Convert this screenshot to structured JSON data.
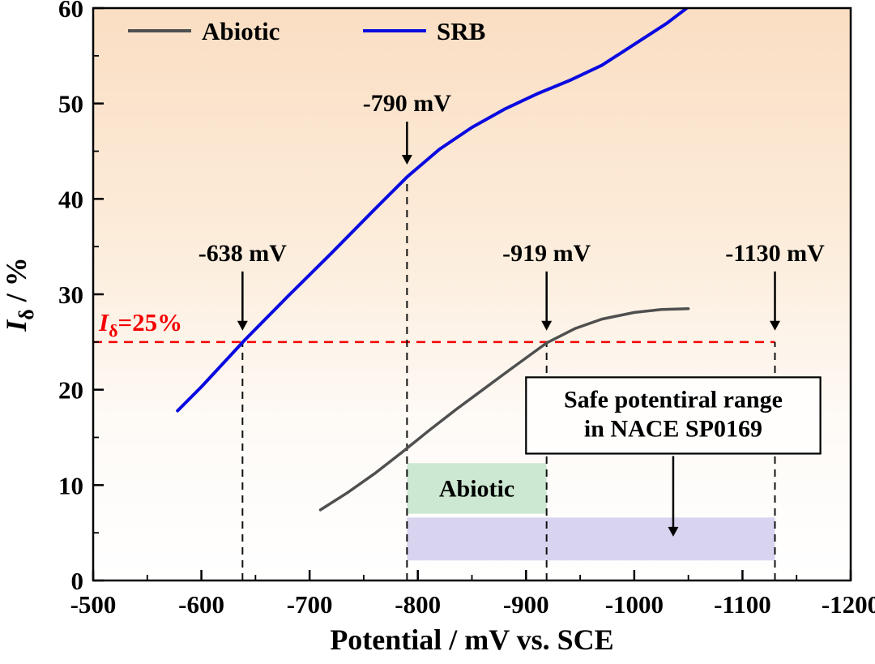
{
  "chart_data": {
    "type": "line",
    "xlabel": "Potential / mV vs. SCE",
    "ylabel_parts": {
      "italic": "I",
      "sub": "δ",
      "rest": " / %"
    },
    "xlim": [
      -500,
      -1200
    ],
    "ylim": [
      0,
      60
    ],
    "x_ticks": [
      -500,
      -600,
      -700,
      -800,
      -900,
      -1000,
      -1100,
      -1200
    ],
    "x_minor_step": 50,
    "y_ticks": [
      0,
      10,
      20,
      30,
      40,
      50,
      60
    ],
    "y_minor_step": 5,
    "grid": false,
    "background_gradient": [
      {
        "offset": "0%",
        "color": "#fadec3"
      },
      {
        "offset": "40%",
        "color": "#fcecda"
      },
      {
        "offset": "72%",
        "color": "#fefaf6"
      },
      {
        "offset": "100%",
        "color": "#ffffff"
      }
    ],
    "legend": {
      "position": "top-left-inside",
      "items": [
        {
          "label": "Abiotic",
          "color": "#4f4f4f"
        },
        {
          "label": "SRB",
          "color": "#0a0ae0"
        }
      ]
    },
    "series": [
      {
        "name": "Abiotic",
        "color": "#4f4f4f",
        "width": 3.5,
        "points": [
          [
            -710,
            7.4
          ],
          [
            -735,
            9.2
          ],
          [
            -760,
            11.2
          ],
          [
            -785,
            13.4
          ],
          [
            -810,
            15.7
          ],
          [
            -835,
            17.9
          ],
          [
            -860,
            20.0
          ],
          [
            -885,
            22.1
          ],
          [
            -919,
            24.9
          ],
          [
            -945,
            26.4
          ],
          [
            -970,
            27.4
          ],
          [
            -1000,
            28.1
          ],
          [
            -1025,
            28.4
          ],
          [
            -1050,
            28.5
          ]
        ]
      },
      {
        "name": "SRB",
        "color": "#0a0ae0",
        "width": 4,
        "points": [
          [
            -578,
            17.8
          ],
          [
            -600,
            20.3
          ],
          [
            -640,
            25.2
          ],
          [
            -680,
            29.8
          ],
          [
            -720,
            34.3
          ],
          [
            -760,
            38.9
          ],
          [
            -790,
            42.3
          ],
          [
            -820,
            45.2
          ],
          [
            -850,
            47.5
          ],
          [
            -880,
            49.4
          ],
          [
            -910,
            51.0
          ],
          [
            -940,
            52.4
          ],
          [
            -970,
            54.0
          ],
          [
            -1000,
            56.2
          ],
          [
            -1030,
            58.4
          ],
          [
            -1052,
            60.3
          ]
        ]
      }
    ],
    "reference_line": {
      "y": 25,
      "x_start": -500,
      "x_end": -1130,
      "color": "#f40000",
      "label_parts": {
        "italic": "I",
        "sub": "δ",
        "rest": "=25%"
      }
    },
    "vertical_markers": [
      {
        "x": -638,
        "label": "-638 mV",
        "line_top": 25,
        "label_y": 33.5,
        "arrow_tip_y": 26.2
      },
      {
        "x": -790,
        "label": "-790 mV",
        "line_top": 42.3,
        "label_y": 49.2,
        "arrow_tip_y": 43.6
      },
      {
        "x": -919,
        "label": "-919 mV",
        "line_top": 25,
        "label_y": 33.5,
        "arrow_tip_y": 26.2
      },
      {
        "x": -1130,
        "label": "-1130 mV",
        "line_top": 25,
        "label_y": 33.5,
        "arrow_tip_y": 26.2
      }
    ],
    "regions": [
      {
        "name": "nace-safe-region",
        "label": "",
        "x0": -790,
        "x1": -1130,
        "y0": 2.1,
        "y1": 6.6,
        "color": "#d8d4f0"
      },
      {
        "name": "abiotic-safe-region",
        "label": "Abiotic",
        "x0": -790,
        "x1": -919,
        "y0": 7.0,
        "y1": 12.3,
        "color": "#cde8d2"
      }
    ],
    "annotation_box": {
      "lines": [
        "Safe potentiral range",
        "in NACE SP0169"
      ],
      "x0": -900,
      "x1": -1172,
      "y_top": 21.3,
      "y_bottom": 13.3,
      "arrow_x": -1036,
      "arrow_tip_y": 4.6
    }
  }
}
